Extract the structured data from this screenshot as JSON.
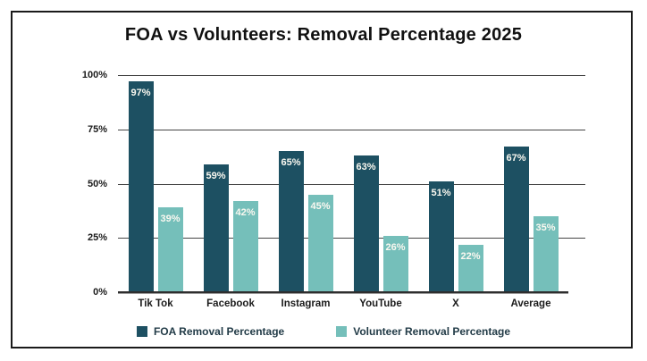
{
  "title": "FOA vs Volunteers: Removal Percentage 2025",
  "chart_data": {
    "type": "bar",
    "title": "FOA vs Volunteers: Removal Percentage 2025",
    "categories": [
      "Tik Tok",
      "Facebook",
      "Instagram",
      "YouTube",
      "X",
      "Average"
    ],
    "series": [
      {
        "name": "FOA Removal Percentage",
        "color": "#1d5062",
        "values": [
          97,
          59,
          65,
          63,
          51,
          67
        ]
      },
      {
        "name": "Volunteer Removal Percentage",
        "color": "#75bfba",
        "values": [
          39,
          42,
          45,
          26,
          22,
          35
        ]
      }
    ],
    "xlabel": "",
    "ylabel": "",
    "ylim": [
      0,
      100
    ],
    "yticks": [
      "0%",
      "25%",
      "50%",
      "75%",
      "100%"
    ],
    "value_label_suffix": "%",
    "grid": "horizontal",
    "legend_position": "bottom"
  },
  "colors": {
    "background": "#ffffff",
    "frame_border": "#1a1a1a",
    "gridline": "#454545",
    "axis_line": "#2e2e2e",
    "tick_text": "#1a1a1a",
    "legend_text": "#223b47",
    "bar_value_text": "#faf8f0"
  }
}
